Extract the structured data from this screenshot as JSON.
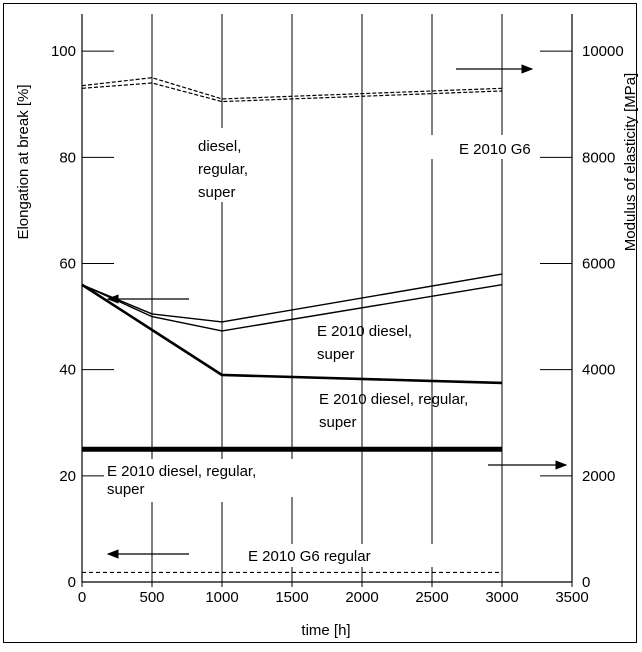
{
  "chart_data": {
    "type": "line",
    "xlabel": "time [h]",
    "ylabel_left": "Elongation at break [%]",
    "ylabel_right": "Modulus of elasticity [MPa]",
    "xlim": [
      0,
      3500
    ],
    "ylim_left": [
      0,
      107
    ],
    "ylim_right": [
      0,
      10700
    ],
    "x_ticks": [
      "0",
      "500",
      "1000",
      "1500",
      "2000",
      "2500",
      "3000",
      "3500"
    ],
    "y_left_ticks": [
      "0",
      "20",
      "40",
      "60",
      "80",
      "100"
    ],
    "y_right_ticks": [
      "0",
      "2000",
      "4000",
      "6000",
      "8000",
      "10000"
    ],
    "grid": "vertical",
    "series": [
      {
        "axis": "right",
        "style": "double-dashed",
        "x": [
          0,
          500,
          1000,
          1500,
          2000,
          2500,
          3000
        ],
        "y": [
          9300,
          9400,
          9050,
          9100,
          9150,
          9200,
          9250
        ]
      },
      {
        "axis": "right",
        "style": "double-dashed",
        "x": [
          0,
          500,
          1000,
          1500,
          2000,
          2500,
          3000
        ],
        "y": [
          9350,
          9500,
          9100,
          9150,
          9200,
          9250,
          9300
        ]
      },
      {
        "axis": "left",
        "style": "thin",
        "x": [
          0,
          500,
          1000,
          3000
        ],
        "y": [
          56,
          50.5,
          49,
          58
        ]
      },
      {
        "axis": "left",
        "style": "thin",
        "x": [
          0,
          500,
          1000,
          3000
        ],
        "y": [
          56,
          50,
          47.3,
          56
        ]
      },
      {
        "axis": "left",
        "style": "bold",
        "x": [
          0,
          500,
          1000,
          3000
        ],
        "y": [
          56,
          47.5,
          39,
          37.5
        ]
      },
      {
        "axis": "right",
        "style": "extra-bold",
        "x": [
          0,
          3000
        ],
        "y": [
          2500,
          2500
        ]
      },
      {
        "axis": "left",
        "style": "dashed",
        "x": [
          0,
          3000
        ],
        "y": [
          1.8,
          1.8
        ]
      }
    ],
    "annotations": [
      {
        "lines": [
          "diesel,",
          "regular,",
          "super"
        ]
      },
      {
        "lines": [
          "E 2010 G6"
        ]
      },
      {
        "lines": [
          "E 2010 diesel,",
          "super"
        ]
      },
      {
        "lines": [
          "E 2010 diesel, regular,",
          "super"
        ]
      },
      {
        "lines": [
          "E 2010 diesel, regular,",
          "super"
        ]
      },
      {
        "lines": [
          "E 2010 G6 regular"
        ]
      }
    ]
  }
}
